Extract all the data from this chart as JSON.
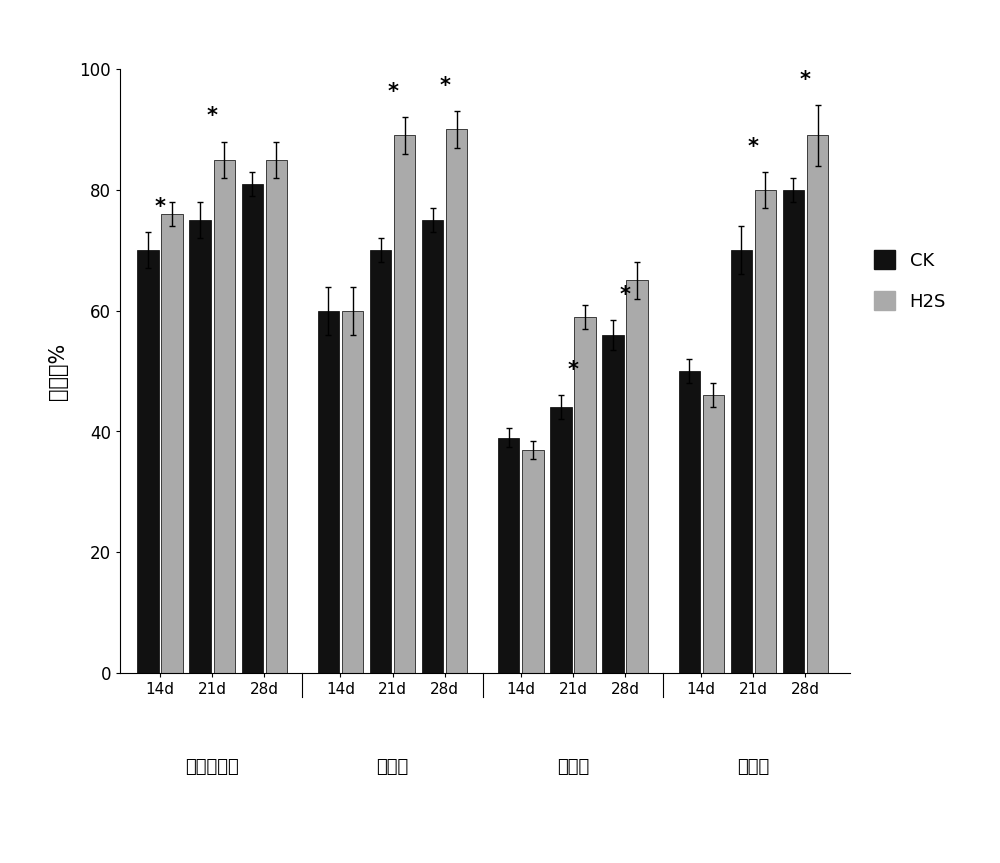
{
  "groups": [
    "矮生波斯菊",
    "百日草",
    "香雪球",
    "凤仙花"
  ],
  "time_labels": [
    "14d",
    "21d",
    "28d"
  ],
  "ck_values": [
    [
      70,
      75,
      81
    ],
    [
      60,
      70,
      75
    ],
    [
      39,
      44,
      56
    ],
    [
      50,
      70,
      80
    ]
  ],
  "h2s_values": [
    [
      76,
      85,
      85
    ],
    [
      60,
      89,
      90
    ],
    [
      37,
      59,
      65
    ],
    [
      46,
      80,
      89
    ]
  ],
  "ck_errors": [
    [
      3.0,
      3.0,
      2.0
    ],
    [
      4.0,
      2.0,
      2.0
    ],
    [
      1.5,
      2.0,
      2.5
    ],
    [
      2.0,
      4.0,
      2.0
    ]
  ],
  "h2s_errors": [
    [
      2.0,
      3.0,
      3.0
    ],
    [
      4.0,
      3.0,
      3.0
    ],
    [
      1.5,
      2.0,
      3.0
    ],
    [
      2.0,
      3.0,
      5.0
    ]
  ],
  "ylabel": "抄薤率%",
  "ylim": [
    0,
    100
  ],
  "yticks": [
    0,
    20,
    40,
    60,
    80,
    100
  ],
  "ck_color": "#111111",
  "h2s_color": "#aaaaaa",
  "legend_labels": [
    "CK",
    "H2S"
  ],
  "background_color": "#ffffff",
  "star_positions": [
    [
      0,
      0,
      "ck"
    ],
    [
      0,
      1,
      "h2s"
    ],
    [
      1,
      1,
      "h2s"
    ],
    [
      1,
      2,
      "h2s"
    ],
    [
      2,
      1,
      "ck"
    ],
    [
      2,
      2,
      "ck"
    ],
    [
      3,
      1,
      "h2s"
    ],
    [
      3,
      2,
      "h2s"
    ]
  ]
}
